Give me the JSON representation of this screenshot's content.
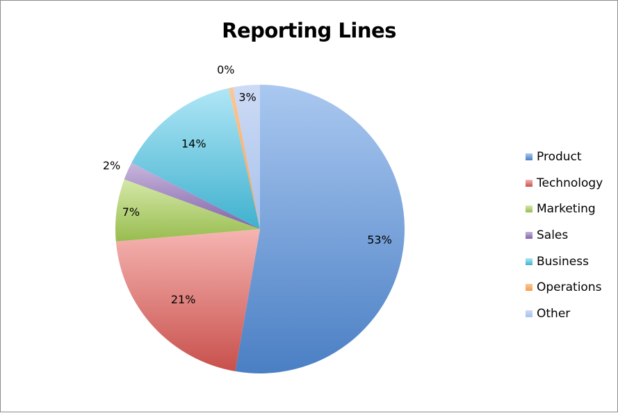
{
  "chart_data": {
    "type": "pie",
    "title": "Reporting Lines",
    "slices": [
      {
        "name": "Product",
        "value": 53,
        "label": "53%",
        "color": "#4a7fc4",
        "light": "#aac8f0"
      },
      {
        "name": "Technology",
        "value": 21,
        "label": "21%",
        "color": "#c8504c",
        "light": "#f6b5b2"
      },
      {
        "name": "Marketing",
        "value": 7,
        "label": "7%",
        "color": "#98bc4f",
        "light": "#d4e8a8"
      },
      {
        "name": "Sales",
        "value": 2,
        "label": "2%",
        "color": "#8164a8",
        "light": "#c8b6dd"
      },
      {
        "name": "Business",
        "value": 14,
        "label": "14%",
        "color": "#3fb1ce",
        "light": "#b0e6f6"
      },
      {
        "name": "Operations",
        "value": 0.5,
        "label": "0%",
        "color": "#f59d4b",
        "light": "#fbc89a"
      },
      {
        "name": "Other",
        "value": 3,
        "label": "3%",
        "color": "#a6c1ec",
        "light": "#cddbf5"
      }
    ],
    "legend_position": "right"
  }
}
